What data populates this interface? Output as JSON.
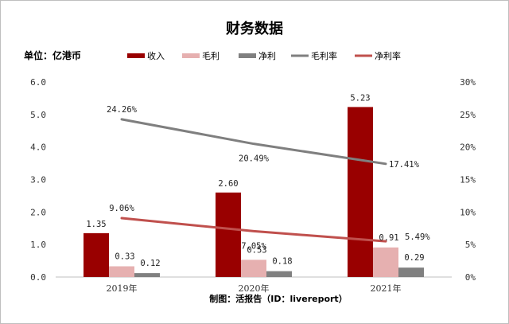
{
  "chart_data": {
    "type": "bar",
    "title": "财务数据",
    "unit_label": "单位：亿港币",
    "footer": "制图：活报告（ID：livereport）",
    "categories": [
      "2019年",
      "2020年",
      "2021年"
    ],
    "y_left": {
      "min": 0,
      "max": 6,
      "ticks": [
        "0.0",
        "1.0",
        "2.0",
        "3.0",
        "4.0",
        "5.0",
        "6.0"
      ]
    },
    "y_right": {
      "min": 0,
      "max": 30,
      "ticks": [
        "0%",
        "5%",
        "10%",
        "15%",
        "20%",
        "25%",
        "30%"
      ]
    },
    "bar_series": [
      {
        "name": "收入",
        "values": [
          1.35,
          2.6,
          5.23
        ],
        "labels": [
          "1.35",
          "2.60",
          "5.23"
        ],
        "color": "#990000"
      },
      {
        "name": "毛利",
        "values": [
          0.33,
          0.53,
          0.91
        ],
        "labels": [
          "0.33",
          "0.53",
          "0.91"
        ],
        "color": "#e6b0b0"
      },
      {
        "name": "净利",
        "values": [
          0.12,
          0.18,
          0.29
        ],
        "labels": [
          "0.12",
          "0.18",
          "0.29"
        ],
        "color": "#808080"
      }
    ],
    "line_series": [
      {
        "name": "毛利率",
        "values": [
          24.26,
          20.49,
          17.41
        ],
        "labels": [
          "24.26%",
          "20.49%",
          "17.41%"
        ],
        "color": "#7f7f7f"
      },
      {
        "name": "净利率",
        "values": [
          9.06,
          7.05,
          5.49
        ],
        "labels": [
          "9.06%",
          "7.05%",
          "5.49%"
        ],
        "color": "#c0504d"
      }
    ],
    "legend_position": "top",
    "grid": false
  }
}
